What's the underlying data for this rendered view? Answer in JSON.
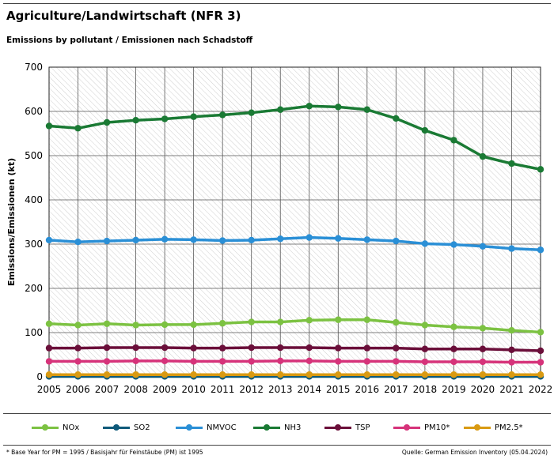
{
  "header": {
    "title": "Agriculture/Landwirtschaft (NFR 3)",
    "subtitle": "Emissions by pollutant / Emissionen nach Schadstoff"
  },
  "footer": {
    "footnote": "* Base Year for PM = 1995 / Basisjahr für Feinstäube (PM) ist 1995",
    "source": "Quelle: German Emission Inventory (05.04.2024)"
  },
  "chart_data": {
    "type": "line",
    "title": "Agriculture/Landwirtschaft (NFR 3)",
    "subtitle": "Emissions by pollutant / Emissionen nach Schadstoff",
    "ylabel": "Emissions/Emissionen (kt)",
    "xlabel": "",
    "ylim": [
      0,
      700
    ],
    "yticks": [
      0,
      100,
      200,
      300,
      400,
      500,
      600,
      700
    ],
    "grid": true,
    "legend_position": "bottom",
    "x": [
      "2005",
      "2006",
      "2007",
      "2008",
      "2009",
      "2010",
      "2011",
      "2012",
      "2013",
      "2014",
      "2015",
      "2016",
      "2017",
      "2018",
      "2019",
      "2020",
      "2021",
      "2022"
    ],
    "series": [
      {
        "name": "NOx",
        "color": "#7cc242",
        "values": [
          120,
          117,
          120,
          117,
          118,
          118,
          121,
          124,
          124,
          128,
          129,
          129,
          123,
          117,
          113,
          110,
          105,
          101
        ]
      },
      {
        "name": "SO2",
        "color": "#0f5a7a",
        "values": [
          1,
          1,
          1,
          1,
          1,
          1,
          1,
          1,
          1,
          1,
          1,
          1,
          1,
          1,
          1,
          1,
          1,
          1
        ]
      },
      {
        "name": "NMVOC",
        "color": "#2a8fd6",
        "values": [
          309,
          305,
          307,
          309,
          311,
          310,
          308,
          309,
          312,
          315,
          313,
          310,
          307,
          301,
          299,
          295,
          290,
          287
        ]
      },
      {
        "name": "NH3",
        "color": "#1a7a34",
        "values": [
          567,
          562,
          575,
          580,
          583,
          588,
          592,
          597,
          604,
          612,
          610,
          604,
          584,
          557,
          535,
          498,
          482,
          469
        ]
      },
      {
        "name": "TSP",
        "color": "#6b0f3a",
        "values": [
          65,
          65,
          66,
          66,
          66,
          65,
          65,
          66,
          66,
          66,
          65,
          65,
          65,
          63,
          63,
          63,
          61,
          59
        ]
      },
      {
        "name": "PM10*",
        "color": "#d6337a",
        "values": [
          35,
          35,
          35,
          36,
          36,
          35,
          35,
          35,
          36,
          36,
          35,
          35,
          35,
          34,
          34,
          34,
          33,
          33
        ]
      },
      {
        "name": "PM2.5*",
        "color": "#d99a12",
        "values": [
          5,
          5,
          5,
          5,
          5,
          5,
          5,
          5,
          5,
          5,
          5,
          5,
          5,
          5,
          5,
          5,
          5,
          5
        ]
      }
    ]
  }
}
